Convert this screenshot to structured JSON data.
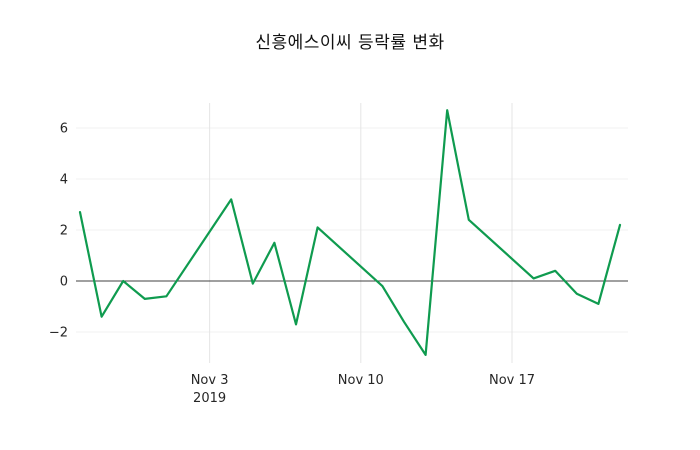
{
  "chart_data": {
    "type": "line",
    "title": "신흥에스이씨 등락률 변화",
    "series_name": "등락률",
    "line_color": "#0f9b4f",
    "zero_line_color": "#404040",
    "grid_color": "#e5e5e5",
    "faint_grid_color": "#f0f0f0",
    "tick_label_color": "#262626",
    "grid": true,
    "legend": false,
    "dates": [
      "Oct 28",
      "Oct 29",
      "Oct 30",
      "Oct 31",
      "Nov 1",
      "Nov 4",
      "Nov 5",
      "Nov 6",
      "Nov 7",
      "Nov 8",
      "Nov 11",
      "Nov 12",
      "Nov 13",
      "Nov 14",
      "Nov 15",
      "Nov 18",
      "Nov 19",
      "Nov 20",
      "Nov 21",
      "Nov 22"
    ],
    "day_offsets": [
      0,
      1,
      2,
      3,
      4,
      7,
      8,
      9,
      10,
      11,
      14,
      15,
      16,
      17,
      18,
      21,
      22,
      23,
      24,
      25
    ],
    "values": [
      2.7,
      -1.4,
      0.0,
      -0.7,
      -0.6,
      3.2,
      -0.1,
      1.5,
      -1.7,
      2.1,
      -0.2,
      -1.6,
      -2.9,
      6.7,
      2.4,
      0.1,
      0.4,
      -0.5,
      -0.9,
      2.2
    ],
    "y_ticks": [
      {
        "value": -2,
        "label": "−2"
      },
      {
        "value": 0,
        "label": "0"
      },
      {
        "value": 2,
        "label": "2"
      },
      {
        "value": 4,
        "label": "4"
      },
      {
        "value": 6,
        "label": "6"
      }
    ],
    "x_ticks": [
      {
        "day": 6,
        "label": "Nov 3",
        "sublabel": "2019"
      },
      {
        "day": 13,
        "label": "Nov 10",
        "sublabel": ""
      },
      {
        "day": 20,
        "label": "Nov 17",
        "sublabel": ""
      }
    ],
    "xlim_days": [
      0,
      25
    ],
    "ylim": [
      -3.2,
      7.2
    ]
  }
}
